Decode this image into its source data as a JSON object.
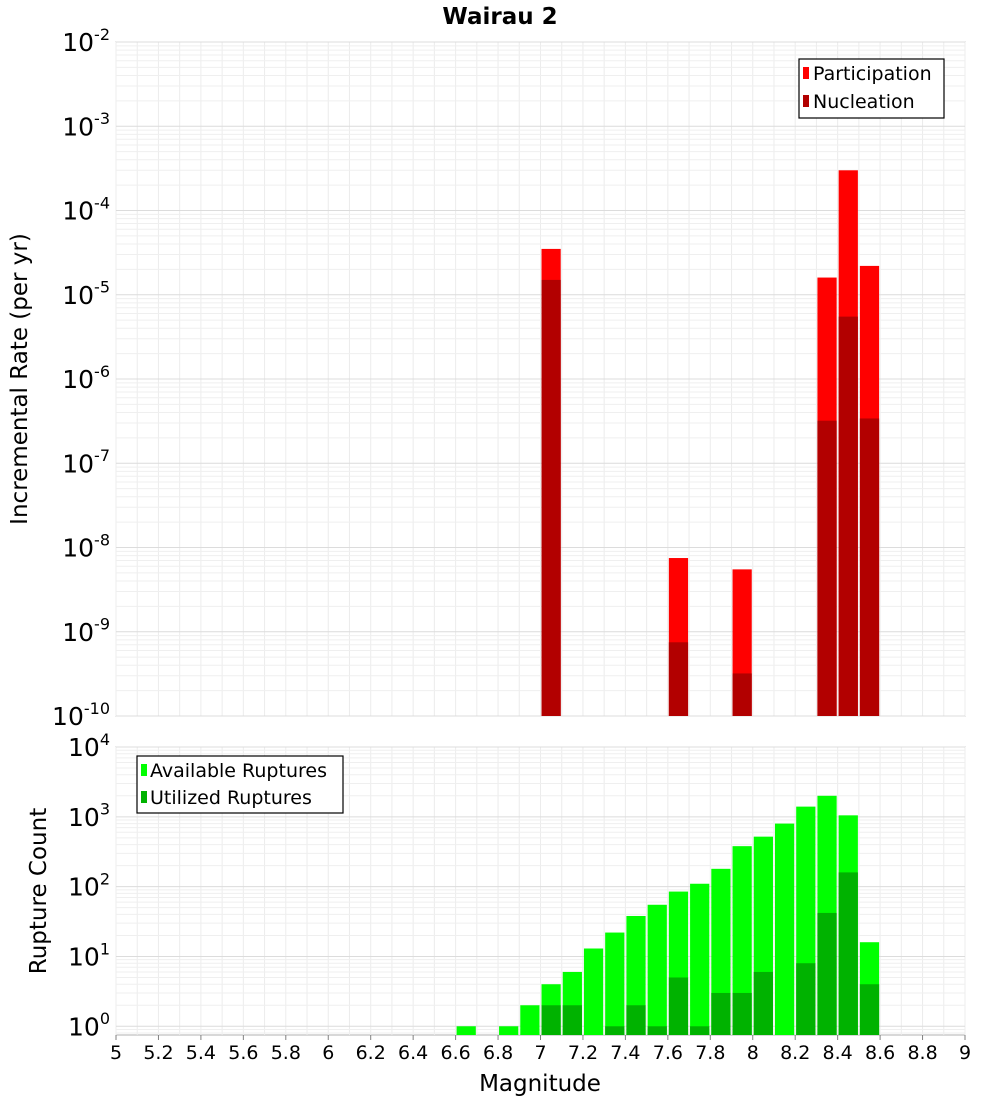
{
  "chart_data": [
    {
      "type": "bar",
      "title": "Wairau 2",
      "xlabel": "",
      "ylabel": "Incremental Rate (per yr)",
      "yscale": "log",
      "ylim": [
        1e-10,
        0.01
      ],
      "xlim": [
        5,
        9
      ],
      "bin_width": 0.1,
      "grid": true,
      "legend_position": "top-right",
      "y_ticks": [
        {
          "base": "10",
          "exp": "-10"
        },
        {
          "base": "10",
          "exp": "-9"
        },
        {
          "base": "10",
          "exp": "-8"
        },
        {
          "base": "10",
          "exp": "-7"
        },
        {
          "base": "10",
          "exp": "-6"
        },
        {
          "base": "10",
          "exp": "-5"
        },
        {
          "base": "10",
          "exp": "-4"
        },
        {
          "base": "10",
          "exp": "-3"
        },
        {
          "base": "10",
          "exp": "-2"
        }
      ],
      "series": [
        {
          "name": "Participation",
          "color": "#ff0000",
          "x": [
            7.05,
            7.65,
            7.95,
            8.35,
            8.45,
            8.55
          ],
          "values": [
            3.5e-05,
            7.5e-09,
            5.5e-09,
            1.6e-05,
            0.0003,
            2.2e-05
          ]
        },
        {
          "name": "Nucleation",
          "color": "#b20000",
          "x": [
            7.05,
            7.65,
            7.95,
            8.35,
            8.45,
            8.55
          ],
          "values": [
            1.5e-05,
            7.5e-10,
            3.2e-10,
            3.2e-07,
            5.5e-06,
            3.4e-07
          ]
        }
      ]
    },
    {
      "type": "bar",
      "title": "",
      "xlabel": "Magnitude",
      "ylabel": "Rupture Count",
      "yscale": "log",
      "ylim": [
        0.75,
        10000
      ],
      "xlim": [
        5,
        9
      ],
      "bin_width": 0.1,
      "grid": true,
      "legend_position": "top-left",
      "x_ticks": [
        "5",
        "5.2",
        "5.4",
        "5.6",
        "5.8",
        "6",
        "6.2",
        "6.4",
        "6.6",
        "6.8",
        "7",
        "7.2",
        "7.4",
        "7.6",
        "7.8",
        "8",
        "8.2",
        "8.4",
        "8.6",
        "8.8",
        "9"
      ],
      "y_ticks": [
        {
          "base": "10",
          "exp": "0"
        },
        {
          "base": "10",
          "exp": "1"
        },
        {
          "base": "10",
          "exp": "2"
        },
        {
          "base": "10",
          "exp": "3"
        },
        {
          "base": "10",
          "exp": "4"
        }
      ],
      "series": [
        {
          "name": "Available Ruptures",
          "color": "#00ff00",
          "x": [
            6.65,
            6.85,
            6.95,
            7.05,
            7.15,
            7.25,
            7.35,
            7.45,
            7.55,
            7.65,
            7.75,
            7.85,
            7.95,
            8.05,
            8.15,
            8.25,
            8.35,
            8.45,
            8.55
          ],
          "values": [
            1,
            1,
            2,
            4,
            6,
            13,
            22,
            38,
            55,
            85,
            110,
            180,
            380,
            520,
            800,
            1400,
            2000,
            1050,
            16
          ]
        },
        {
          "name": "Utilized Ruptures",
          "color": "#00b200",
          "x": [
            7.05,
            7.15,
            7.35,
            7.45,
            7.55,
            7.65,
            7.75,
            7.85,
            7.95,
            8.05,
            8.25,
            8.35,
            8.45,
            8.55
          ],
          "values": [
            2,
            2,
            1,
            2,
            1,
            5,
            1,
            3,
            3,
            6,
            8,
            42,
            160,
            4
          ]
        }
      ]
    }
  ]
}
